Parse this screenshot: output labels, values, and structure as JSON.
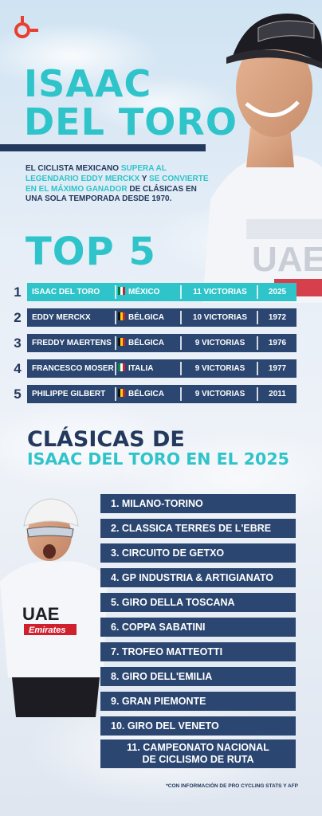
{
  "title": {
    "line1": "ISAAC",
    "line2": "DEL TORO"
  },
  "intro": {
    "p1": "EL CICLISTA MEXICANO ",
    "h1": "SUPERA AL LEGENDARIO EDDY MERCKX",
    "p2": " Y ",
    "h2": "SE CONVIERTE EN EL MÁXIMO GANADOR",
    "p3": " DE CLÁSICAS EN UNA SOLA TEMPORADA DESDE 1970."
  },
  "top5_title": "TOP 5",
  "ranking": [
    {
      "pos": "1",
      "name": "ISAAC DEL TORO",
      "country": "MÉXICO",
      "wins": "11 VICTORIAS",
      "year": "2025",
      "flag": "mexico-flag-icon"
    },
    {
      "pos": "2",
      "name": "EDDY MERCKX",
      "country": "BÉLGICA",
      "wins": "10 VICTORIAS",
      "year": "1972",
      "flag": "belgium-flag-icon"
    },
    {
      "pos": "3",
      "name": "FREDDY MAERTENS",
      "country": "BÉLGICA",
      "wins": "9 VICTORIAS",
      "year": "1976",
      "flag": "belgium-flag-icon"
    },
    {
      "pos": "4",
      "name": "FRANCESCO MOSER",
      "country": "ITALIA",
      "wins": "9 VICTORIAS",
      "year": "1977",
      "flag": "italy-flag-icon"
    },
    {
      "pos": "5",
      "name": "PHILIPPE GILBERT",
      "country": "BÉLGICA",
      "wins": "9 VICTORIAS",
      "year": "2011",
      "flag": "belgium-flag-icon"
    }
  ],
  "clasicas_title": {
    "line1": "CLÁSICAS DE",
    "line2": "ISAAC DEL TORO EN EL 2025"
  },
  "races": [
    "1. MILANO-TORINO",
    "2. CLASSICA TERRES DE L'EBRE",
    "3. CIRCUITO DE GETXO",
    "4. GP INDUSTRIA & ARTIGIANATO",
    "5. GIRO DELLA TOSCANA",
    "6. COPPA SABATINI",
    "7. TROFEO MATTEOTTI",
    "8. GIRO DELL'EMILIA",
    "9. GRAN PIEMONTE",
    "10. GIRO DEL VENETO"
  ],
  "race_11": {
    "line1": "11. CAMPEONATO NACIONAL",
    "line2": "DE CICLISMO DE RUTA"
  },
  "footnote": "*CON INFORMACIÓN DE PRO CYCLING STATS Y AFP",
  "colors": {
    "teal": "#2fc4c9",
    "navy": "#23395d",
    "bar": "#2b4670",
    "logo_red": "#e8402e"
  },
  "jersey_text": {
    "team": "UAE",
    "sponsor": "Emirates"
  }
}
